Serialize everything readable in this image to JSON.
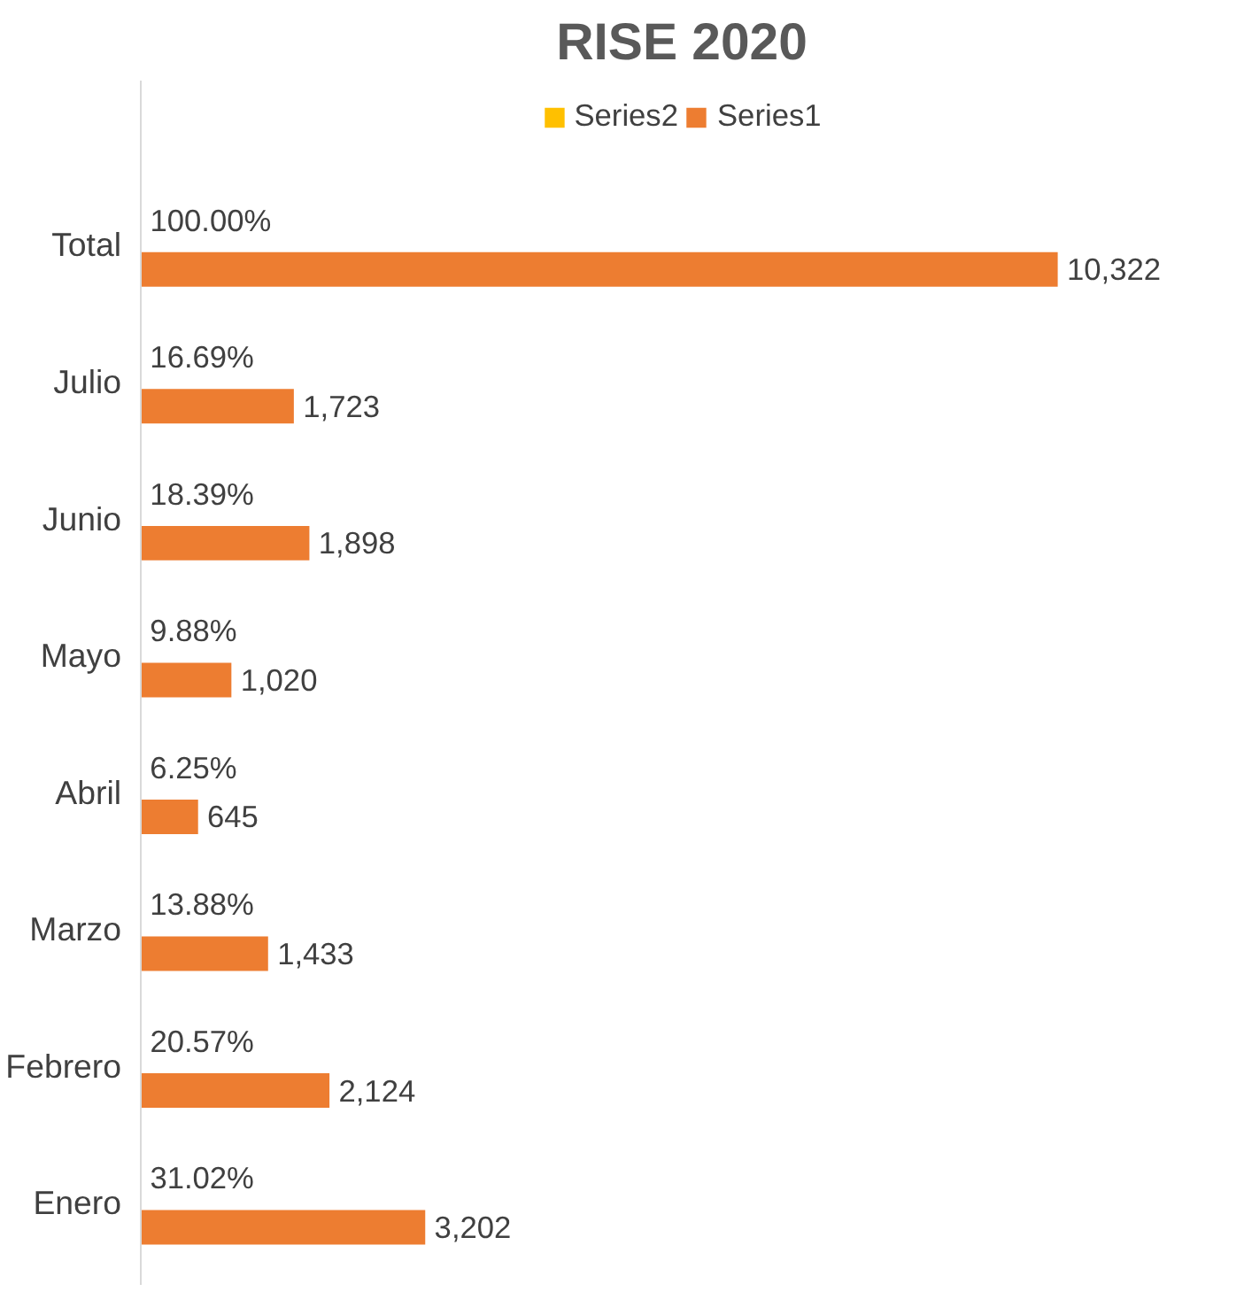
{
  "chart_data": {
    "type": "bar",
    "orientation": "horizontal",
    "title": "RISE 2020",
    "categories": [
      "Total",
      "Julio",
      "Junio",
      "Mayo",
      "Abril",
      "Marzo",
      "Febrero",
      "Enero"
    ],
    "series": [
      {
        "name": "Series2",
        "color": "#ffc000",
        "values": [
          1.0,
          0.1669,
          0.1839,
          0.0988,
          0.0625,
          0.1388,
          0.2057,
          0.3102
        ],
        "value_labels": [
          "100.00%",
          "16.69%",
          "18.39%",
          "9.88%",
          "6.25%",
          "13.88%",
          "20.57%",
          "31.02%"
        ]
      },
      {
        "name": "Series1",
        "color": "#ed7d31",
        "values": [
          10322,
          1723,
          1898,
          1020,
          645,
          1433,
          2124,
          3202
        ],
        "value_labels": [
          "10,322",
          "1,723",
          "1,898",
          "1,020",
          "645",
          "1,433",
          "2,124",
          "3,202"
        ]
      }
    ],
    "legend": "top",
    "grid": false
  }
}
